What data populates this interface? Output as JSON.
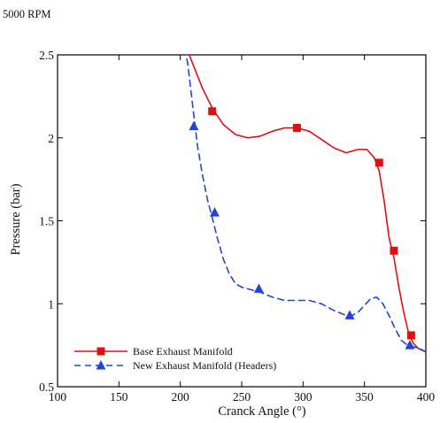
{
  "caption": "5000 RPM",
  "chart_data": {
    "type": "line",
    "xlabel": "Cranck Angle (°)",
    "ylabel": "Pressure (bar)",
    "xlim": [
      100,
      400
    ],
    "ylim": [
      0.5,
      2.5
    ],
    "xticks": [
      "100",
      "150",
      "200",
      "250",
      "300",
      "350",
      "400"
    ],
    "yticks": [
      "0.5",
      "1",
      "1.5",
      "2",
      "2.5"
    ],
    "grid": false,
    "legend_position": "bottom-left",
    "series": [
      {
        "name": "Base Exhaust Manifold",
        "color": "#dd1111",
        "line_style": "solid",
        "marker": "square",
        "x": [
          202,
          210,
          218,
          226,
          235,
          245,
          255,
          265,
          275,
          285,
          295,
          305,
          315,
          325,
          335,
          345,
          352,
          358,
          362,
          366,
          370,
          374,
          378,
          382,
          386,
          390,
          394,
          400
        ],
        "y": [
          2.6,
          2.45,
          2.3,
          2.18,
          2.08,
          2.02,
          2.0,
          2.01,
          2.04,
          2.06,
          2.06,
          2.04,
          1.99,
          1.94,
          1.91,
          1.93,
          1.93,
          1.88,
          1.8,
          1.62,
          1.4,
          1.28,
          1.1,
          0.95,
          0.82,
          0.76,
          0.73,
          0.71
        ],
        "marker_x": [
          226,
          295,
          362,
          374,
          388
        ],
        "marker_y": [
          2.16,
          2.06,
          1.85,
          1.32,
          0.81
        ]
      },
      {
        "name": "New Exhaust Manifold (Headers)",
        "color": "#2244dd",
        "line_style": "dashed",
        "marker": "triangle",
        "x": [
          202,
          206,
          210,
          214,
          218,
          222,
          226,
          230,
          235,
          240,
          245,
          250,
          255,
          260,
          265,
          275,
          285,
          295,
          305,
          315,
          325,
          335,
          340,
          345,
          350,
          355,
          360,
          365,
          370,
          375,
          380,
          385,
          390,
          395,
          400
        ],
        "y": [
          2.6,
          2.45,
          2.2,
          1.95,
          1.78,
          1.63,
          1.52,
          1.4,
          1.27,
          1.18,
          1.12,
          1.1,
          1.09,
          1.08,
          1.07,
          1.04,
          1.02,
          1.02,
          1.02,
          1.0,
          0.96,
          0.93,
          0.93,
          0.95,
          0.99,
          1.03,
          1.04,
          1.0,
          0.93,
          0.85,
          0.78,
          0.75,
          0.74,
          0.73,
          0.71
        ],
        "marker_x": [
          211,
          228,
          264,
          338,
          387
        ],
        "marker_y": [
          2.07,
          1.55,
          1.09,
          0.93,
          0.75
        ]
      }
    ]
  }
}
